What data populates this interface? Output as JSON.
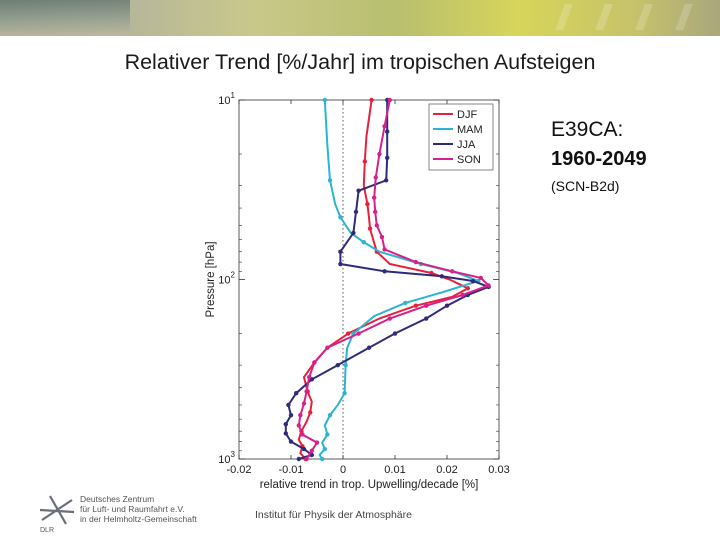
{
  "title": "Relativer Trend [%/Jahr] im tropischen Aufsteigen",
  "annotation": {
    "line1": "E39CA:",
    "line2": "1960-2049",
    "line3": "(SCN-B2d)"
  },
  "footer": {
    "institute": "Institut für Physik der Atmosphäre",
    "logo_line1": "Deutsches Zentrum",
    "logo_line2": "für Luft- und Raumfahrt e.V.",
    "logo_line3": "in der Helmholtz-Gemeinschaft",
    "logo_abbrev": "DLR"
  },
  "chart_data": {
    "type": "line",
    "title": "",
    "xlabel": "relative trend in trop. Upwelling/decade [%]",
    "ylabel": "Pressure [hPa]",
    "xlim": [
      -0.02,
      0.03
    ],
    "ylim": [
      1000,
      10
    ],
    "yscale": "log",
    "xticks": [
      "-0.02",
      "-0.01",
      "0",
      "0.01",
      "0.02",
      "0.03"
    ],
    "yticks": [
      {
        "value": 10,
        "base": "10",
        "exp": "1"
      },
      {
        "value": 100,
        "base": "10",
        "exp": "2"
      },
      {
        "value": 1000,
        "base": "10",
        "exp": "3"
      }
    ],
    "zero_line": true,
    "legend_position": "top-right",
    "series": [
      {
        "name": "DJF",
        "color": "#e8203a",
        "x": [
          0.0055,
          0.0045,
          0.0042,
          0.004,
          0.0047,
          0.005,
          0.0052,
          0.0058,
          0.0065,
          0.009,
          0.017,
          0.0205,
          0.024,
          0.021,
          0.014,
          0.007,
          0.001,
          -0.003,
          -0.0055,
          -0.0075,
          -0.0068,
          -0.006,
          -0.0063,
          -0.007,
          -0.008,
          -0.0085,
          -0.0078,
          -0.0082,
          -0.0072
        ],
        "y": [
          10,
          16,
          22,
          30,
          38,
          45,
          52,
          60,
          70,
          82,
          92,
          100,
          112,
          125,
          140,
          165,
          200,
          240,
          290,
          350,
          420,
          480,
          550,
          620,
          700,
          780,
          850,
          930,
          1000
        ]
      },
      {
        "name": "MAM",
        "color": "#2ab5d0",
        "x": [
          -0.0035,
          -0.003,
          -0.0025,
          -0.0015,
          -0.0005,
          0.0015,
          0.004,
          0.007,
          0.015,
          0.022,
          0.026,
          0.019,
          0.012,
          0.006,
          0.002,
          0.0008,
          0.0005,
          0.0004,
          0.0003,
          -0.001,
          -0.0025,
          -0.0035,
          -0.003,
          -0.004,
          -0.0035,
          -0.0045,
          -0.004
        ],
        "y": [
          10,
          18,
          28,
          38,
          45,
          55,
          62,
          70,
          82,
          92,
          102,
          118,
          135,
          160,
          200,
          240,
          300,
          360,
          430,
          500,
          570,
          650,
          730,
          810,
          880,
          950,
          1000
        ]
      },
      {
        "name": "JJA",
        "color": "#2e2b7a",
        "x": [
          0.0085,
          0.0085,
          0.0085,
          0.0083,
          0.003,
          0.0025,
          0.002,
          -0.0005,
          -0.0005,
          0.008,
          0.019,
          0.025,
          0.028,
          0.024,
          0.02,
          0.016,
          0.01,
          0.005,
          -0.001,
          -0.006,
          -0.009,
          -0.0105,
          -0.01,
          -0.011,
          -0.011,
          -0.01,
          -0.0075,
          -0.006,
          -0.0085
        ],
        "y": [
          10,
          15,
          21,
          28,
          32,
          42,
          55,
          70,
          82,
          90,
          96,
          102,
          110,
          122,
          140,
          165,
          200,
          240,
          300,
          360,
          430,
          500,
          570,
          640,
          720,
          800,
          880,
          950,
          1000
        ]
      },
      {
        "name": "SON",
        "color": "#d8208c",
        "x": [
          0.009,
          0.008,
          0.007,
          0.0063,
          0.006,
          0.0062,
          0.0065,
          0.0075,
          0.008,
          0.014,
          0.021,
          0.0265,
          0.028,
          0.023,
          0.016,
          0.009,
          0.003,
          -0.003,
          -0.0055,
          -0.0065,
          -0.007,
          -0.0075,
          -0.0082,
          -0.0085,
          -0.0078,
          -0.005,
          -0.006,
          -0.007
        ],
        "y": [
          10,
          14,
          20,
          27,
          35,
          42,
          50,
          58,
          68,
          80,
          90,
          98,
          108,
          122,
          140,
          165,
          200,
          240,
          290,
          350,
          420,
          490,
          570,
          650,
          730,
          810,
          900,
          1000
        ]
      }
    ]
  }
}
